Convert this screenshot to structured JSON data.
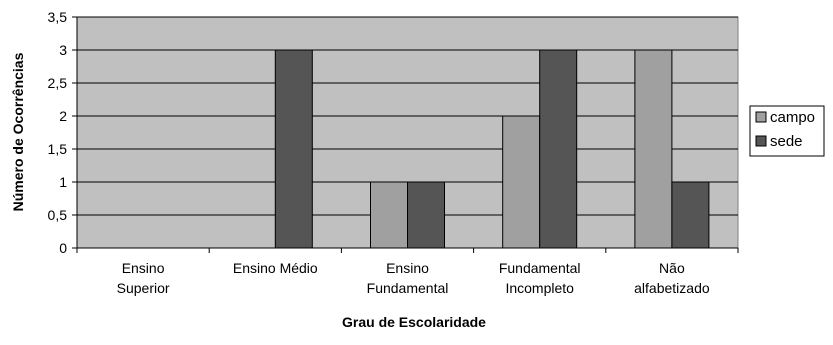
{
  "chart_data": {
    "type": "bar",
    "categories": [
      [
        "Ensino",
        "Superior"
      ],
      [
        "Ensino Médio"
      ],
      [
        "Ensino",
        "Fundamental"
      ],
      [
        "Fundamental",
        "Incompleto"
      ],
      [
        "Não",
        "alfabetizado"
      ]
    ],
    "series": [
      {
        "name": "campo",
        "values": [
          0,
          0,
          1,
          2,
          3
        ],
        "color": "#a0a0a0"
      },
      {
        "name": "sede",
        "values": [
          0,
          3,
          1,
          3,
          1
        ],
        "color": "#555555"
      }
    ],
    "xlabel": "Grau de Escolaridade",
    "ylabel": "Número de Ocorrências",
    "ylim": [
      0,
      3.5
    ],
    "yticks": [
      "0",
      "0,5",
      "1",
      "1,5",
      "2",
      "2,5",
      "3",
      "3,5"
    ],
    "plot_background": "#c0c0c0",
    "grid": true,
    "legend_position": "right"
  }
}
